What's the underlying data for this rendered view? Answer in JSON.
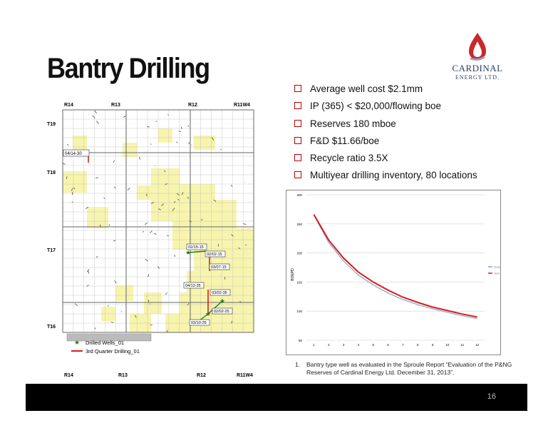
{
  "slide": {
    "title": "Bantry Drilling",
    "page_number": "16"
  },
  "logo": {
    "brand": "CARDINAL",
    "sub": "ENERGY LTD."
  },
  "bullets": [
    "Average well cost $2.1mm",
    "IP (365) < $20,000/flowing boe",
    "Reserves 180 mboe",
    "F&D $11.66/boe",
    "Recycle ratio 3.5X",
    "Multiyear drilling inventory, 80 locations"
  ],
  "map": {
    "range_labels": [
      "R14",
      "R13",
      "R12",
      "R11W4"
    ],
    "township_labels": [
      "T19",
      "T18",
      "T17",
      "T16"
    ],
    "well_labels": [
      "04/14-30",
      "02/15-15",
      "02/02-15",
      "03/07-15",
      "04/12-35",
      "03/02-35",
      "02/02-25",
      "03/10-25"
    ],
    "legend": {
      "drilled": "Drilled Wells_01",
      "third_quarter": "3rd Quarter Drilling_01"
    },
    "colors": {
      "yellow": "#f7f4ad",
      "grid": "#bdbdbd",
      "green": "#1e7a1e",
      "red": "#d62020"
    }
  },
  "chart_data": {
    "type": "line",
    "x": [
      1,
      2,
      3,
      4,
      5,
      6,
      7,
      8,
      9,
      10,
      11,
      12
    ],
    "series": [
      {
        "name": "Actual",
        "color": "#7aa6cf",
        "values": [
          265,
          218,
          186,
          162,
          145,
          131,
          120,
          111,
          104,
          98,
          92,
          87
        ]
      },
      {
        "name": "Year",
        "color": "#dd1a1a",
        "values": [
          266,
          222,
          191,
          167,
          150,
          136,
          124,
          115,
          107,
          101,
          95,
          90
        ]
      }
    ],
    "ylabel": "BOEPD",
    "ylim": [
      50,
      300
    ],
    "yticks": [
      50,
      100,
      150,
      200,
      250,
      300
    ],
    "grid": true,
    "legend_position": "right"
  },
  "footnote": {
    "number": "1.",
    "text": "Bantry type well as evaluated in the Sproule Report “Evaluation of the P&NG Reserves of Cardinal Energy Ltd. December 31, 2013”."
  }
}
